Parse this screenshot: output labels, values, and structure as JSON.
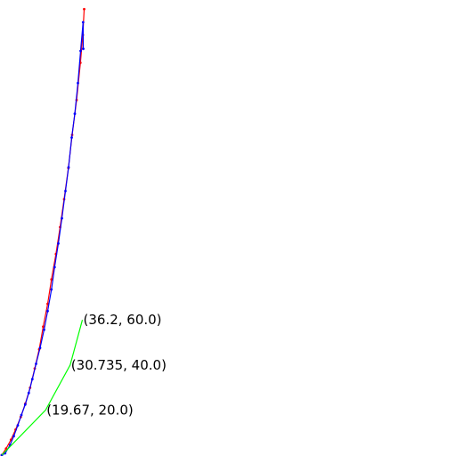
{
  "chart_data": {
    "type": "line",
    "title": "",
    "xlabel": "",
    "ylabel": "",
    "xlim": [
      0,
      100
    ],
    "ylim": [
      0,
      200
    ],
    "grid": false,
    "axes_visible": false,
    "series": [
      {
        "color": "#ff0000",
        "marker": "dot",
        "points": [
          [
            0,
            0
          ],
          [
            1.9,
            2.9
          ],
          [
            4.1,
            6.8
          ],
          [
            6.2,
            11.3
          ],
          [
            8.5,
            16.9
          ],
          [
            10.6,
            22.9
          ],
          [
            12.7,
            29.9
          ],
          [
            14.8,
            38.4
          ],
          [
            16.8,
            46.9
          ],
          [
            18.6,
            57.0
          ],
          [
            20.6,
            67.1
          ],
          [
            22.3,
            78.0
          ],
          [
            24.3,
            89.2
          ],
          [
            26.2,
            101.2
          ],
          [
            28.0,
            113.6
          ],
          [
            29.9,
            127.4
          ],
          [
            31.6,
            142.1
          ],
          [
            33.6,
            157.6
          ],
          [
            35.3,
            174.1
          ],
          [
            36.4,
            186.5
          ],
          [
            37.0,
            197.9
          ]
        ]
      },
      {
        "color": "#0000ff",
        "marker": "dot",
        "points": [
          [
            0,
            0
          ],
          [
            1.5,
            0.8
          ],
          [
            3.7,
            4.5
          ],
          [
            5.4,
            8.4
          ],
          [
            7.2,
            13.2
          ],
          [
            8.8,
            17.8
          ],
          [
            10.5,
            22.4
          ],
          [
            12.1,
            27.6
          ],
          [
            13.7,
            33.7
          ],
          [
            15.4,
            40.5
          ],
          [
            17.2,
            47.6
          ],
          [
            19.0,
            55.6
          ],
          [
            20.6,
            63.9
          ],
          [
            22.3,
            73.5
          ],
          [
            23.7,
            83.4
          ],
          [
            25.4,
            93.9
          ],
          [
            27.0,
            105.1
          ],
          [
            28.6,
            117.2
          ],
          [
            30.0,
            127.7
          ],
          [
            31.4,
            140.9
          ],
          [
            32.8,
            151.5
          ],
          [
            34.2,
            165.1
          ],
          [
            35.4,
            179.4
          ],
          [
            36.5,
            192.1
          ],
          [
            36.6,
            180.3
          ]
        ]
      },
      {
        "color": "#00ff00",
        "marker": "none",
        "points": [
          [
            0,
            0
          ],
          [
            19.67,
            20.0
          ],
          [
            30.735,
            40.0
          ],
          [
            36.2,
            60.0
          ]
        ]
      }
    ],
    "annotations": [
      {
        "text": "(19.67, 20.0)",
        "x": 19.67,
        "y": 20.0
      },
      {
        "text": "(30.735, 40.0)",
        "x": 30.735,
        "y": 40.0
      },
      {
        "text": "(36.2, 60.0)",
        "x": 36.2,
        "y": 60.0
      }
    ]
  }
}
